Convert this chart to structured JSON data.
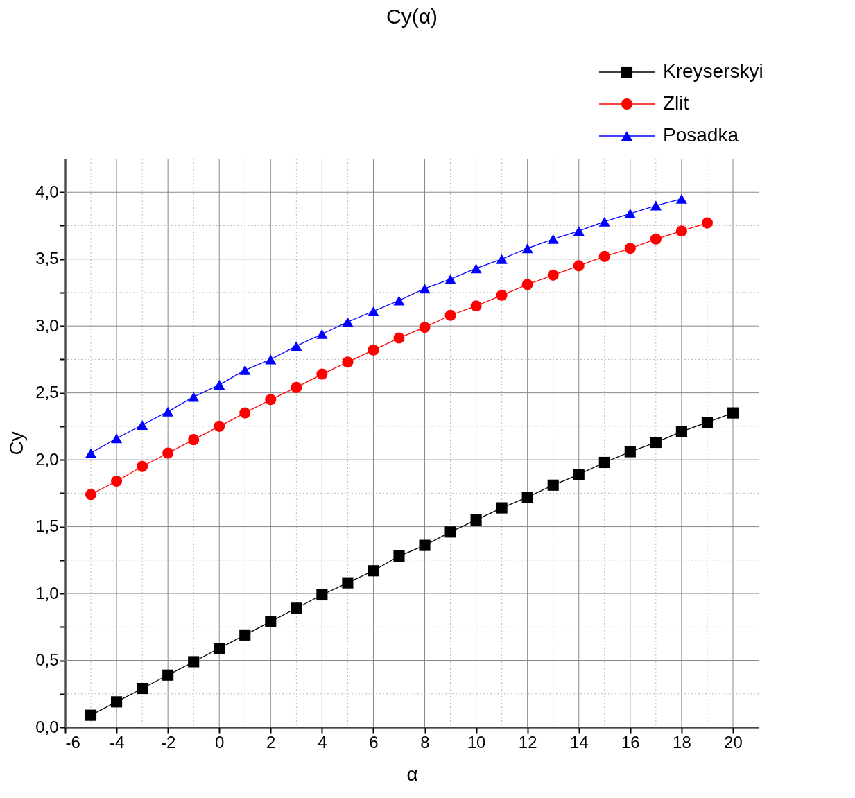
{
  "chart_data": {
    "type": "line",
    "title": "Cy(α)",
    "xlabel": "α",
    "ylabel": "Cy",
    "x": [
      -5,
      -4,
      -3,
      -2,
      -1,
      0,
      1,
      2,
      3,
      4,
      5,
      6,
      7,
      8,
      9,
      10,
      11,
      12,
      13,
      14,
      15,
      16,
      17,
      18,
      19,
      20
    ],
    "series": [
      {
        "name": "Kreyserskyi",
        "color": "#000000",
        "marker": "square",
        "values": [
          0.09,
          0.19,
          0.29,
          0.39,
          0.49,
          0.59,
          0.69,
          0.79,
          0.89,
          0.99,
          1.08,
          1.17,
          1.28,
          1.36,
          1.46,
          1.55,
          1.64,
          1.72,
          1.81,
          1.89,
          1.98,
          2.06,
          2.13,
          2.21,
          2.28,
          2.35
        ]
      },
      {
        "name": "Zlit",
        "color": "#ff0000",
        "marker": "circle",
        "values": [
          1.74,
          1.84,
          1.95,
          2.05,
          2.15,
          2.25,
          2.35,
          2.45,
          2.54,
          2.64,
          2.73,
          2.82,
          2.91,
          2.99,
          3.08,
          3.15,
          3.23,
          3.31,
          3.38,
          3.45,
          3.52,
          3.58,
          3.65,
          3.71,
          3.77,
          null
        ]
      },
      {
        "name": "Posadka",
        "color": "#0000ff",
        "marker": "triangle",
        "values": [
          2.05,
          2.16,
          2.26,
          2.36,
          2.47,
          2.56,
          2.67,
          2.75,
          2.85,
          2.94,
          3.03,
          3.11,
          3.19,
          3.28,
          3.35,
          3.43,
          3.5,
          3.58,
          3.65,
          3.71,
          3.78,
          3.84,
          3.9,
          3.95,
          null,
          null
        ]
      }
    ],
    "xlim": [
      -6,
      21
    ],
    "ylim": [
      0,
      4.25
    ],
    "xticks": [
      -6,
      {
        "value": -5,
        "label": null
      },
      -4,
      {
        "value": -3,
        "label": null
      },
      -2,
      {
        "value": -1,
        "label": null
      },
      0,
      {
        "value": 1,
        "label": null
      },
      2,
      {
        "value": 3,
        "label": null
      },
      4,
      {
        "value": 5,
        "label": null
      },
      6,
      {
        "value": 7,
        "label": null
      },
      8,
      {
        "value": 9,
        "label": null
      },
      10,
      {
        "value": 11,
        "label": null
      },
      12,
      {
        "value": 13,
        "label": null
      },
      14,
      {
        "value": 15,
        "label": null
      },
      16,
      {
        "value": 17,
        "label": null
      },
      18,
      {
        "value": 19,
        "label": null
      },
      20
    ],
    "yticks": [
      {
        "value": 0,
        "label": "0,0"
      },
      {
        "value": 0.25,
        "label": null
      },
      {
        "value": 0.5,
        "label": "0,5"
      },
      {
        "value": 0.75,
        "label": null
      },
      {
        "value": 1,
        "label": "1,0"
      },
      {
        "value": 1.25,
        "label": null
      },
      {
        "value": 1.5,
        "label": "1,5"
      },
      {
        "value": 1.75,
        "label": null
      },
      {
        "value": 2,
        "label": "2,0"
      },
      {
        "value": 2.25,
        "label": null
      },
      {
        "value": 2.5,
        "label": "2,5"
      },
      {
        "value": 2.75,
        "label": null
      },
      {
        "value": 3,
        "label": "3,0"
      },
      {
        "value": 3.25,
        "label": null
      },
      {
        "value": 3.5,
        "label": "3,5"
      },
      {
        "value": 3.75,
        "label": null
      },
      {
        "value": 4,
        "label": "4,0"
      }
    ],
    "grid": true,
    "legend": "top right",
    "line_style": "solid"
  }
}
